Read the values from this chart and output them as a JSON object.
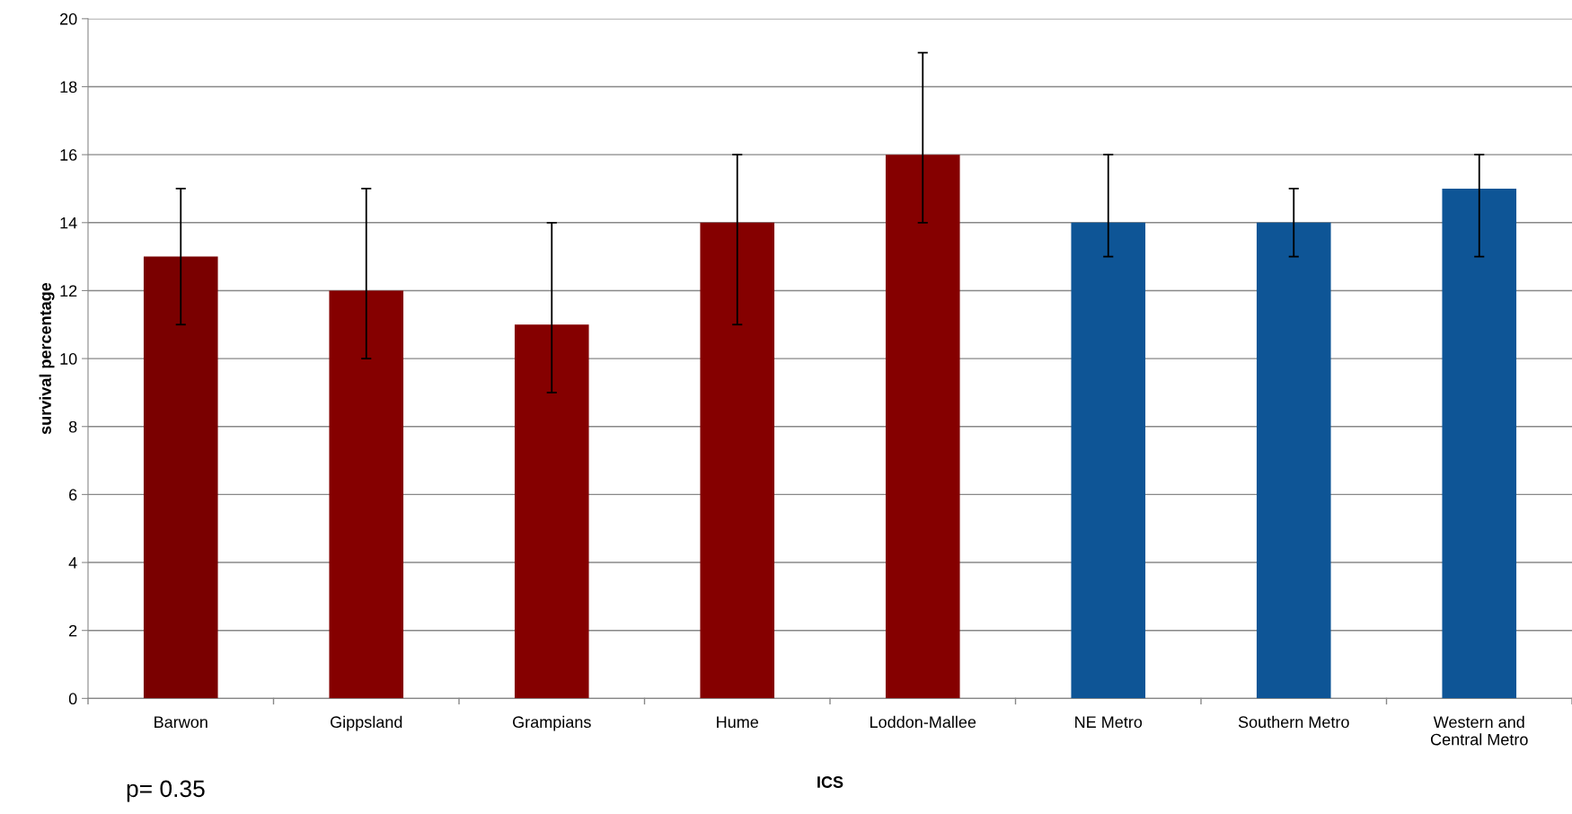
{
  "chart_data": {
    "type": "bar",
    "categories": [
      "Barwon",
      "Gippsland",
      "Grampians",
      "Hume",
      "Loddon-Mallee",
      "NE Metro",
      "Southern Metro",
      "Western and Central Metro"
    ],
    "values": [
      13,
      12,
      11,
      14,
      16,
      14,
      14,
      15
    ],
    "colors": [
      "#7a0000",
      "#850000",
      "#850000",
      "#850000",
      "#850000",
      "#0e5596",
      "#0e5596",
      "#0e5596"
    ],
    "errors": [
      [
        11,
        15
      ],
      [
        10,
        15
      ],
      [
        9,
        14
      ],
      [
        11,
        16
      ],
      [
        14,
        19
      ],
      [
        13,
        16
      ],
      [
        13,
        15
      ],
      [
        13,
        16
      ]
    ],
    "xlabel": "ICS",
    "ylabel": "survival percentage",
    "ylim": [
      0,
      20
    ],
    "yticks": [
      0,
      2,
      4,
      6,
      8,
      10,
      12,
      14,
      16,
      18,
      20
    ],
    "grid": "y",
    "legend": false,
    "annotations": [
      "p= 0.35"
    ]
  }
}
